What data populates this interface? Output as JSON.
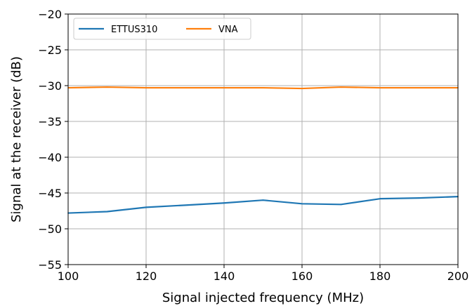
{
  "chart_data": {
    "type": "line",
    "xlabel": "Signal injected frequency (MHz)",
    "ylabel": "Signal at the receiver (dB)",
    "xlim": [
      100,
      200
    ],
    "ylim": [
      -55,
      -20
    ],
    "x_ticks": [
      100,
      120,
      140,
      160,
      180,
      200
    ],
    "y_ticks": [
      -55,
      -50,
      -45,
      -40,
      -35,
      -30,
      -25,
      -20
    ],
    "x_tick_labels": [
      "100",
      "120",
      "140",
      "160",
      "180",
      "200"
    ],
    "y_tick_labels": [
      "−55",
      "−50",
      "−45",
      "−40",
      "−35",
      "−30",
      "−25",
      "−20"
    ],
    "grid": true,
    "legend_position": "top-left",
    "x": [
      100,
      110,
      120,
      130,
      140,
      150,
      160,
      170,
      180,
      190,
      200
    ],
    "series": [
      {
        "name": "ETTUS310",
        "color": "#1f77b4",
        "values": [
          -47.8,
          -47.6,
          -47.0,
          -46.7,
          -46.4,
          -46.0,
          -46.5,
          -46.6,
          -45.8,
          -45.7,
          -45.5
        ]
      },
      {
        "name": "VNA",
        "color": "#ff7f0e",
        "values": [
          -30.3,
          -30.2,
          -30.3,
          -30.3,
          -30.3,
          -30.3,
          -30.4,
          -30.2,
          -30.3,
          -30.3,
          -30.3
        ]
      }
    ]
  }
}
